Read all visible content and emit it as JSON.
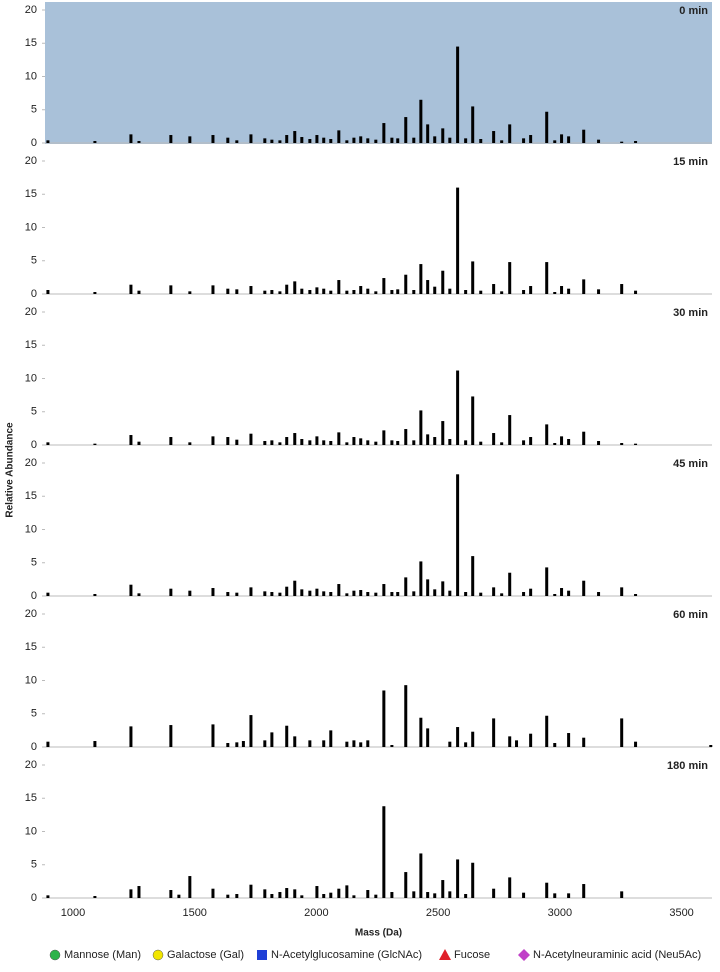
{
  "shared": {
    "ylabel": "Relative Abundance",
    "legend": [
      {
        "label": "Mannose (Man)",
        "color": "#2db34a",
        "shape": "circle"
      },
      {
        "label": "Galactose (Gal)",
        "color": "#f2e600",
        "shape": "circle"
      },
      {
        "label": "N-Acetylglucosamine (GlcNAc)",
        "color": "#1f3fd6",
        "shape": "square"
      },
      {
        "label": "Fucose",
        "color": "#e0202a",
        "shape": "triangle"
      },
      {
        "label": "N-Acetylneuraminic acid (Neu5Ac)",
        "color": "#c040c8",
        "shape": "diamond"
      }
    ]
  },
  "chart_data": [
    {
      "type": "bar",
      "title": "0 min",
      "background": "#a9c1d9",
      "color": "#000000",
      "xlim": [
        885,
        3625
      ],
      "ylim": [
        0,
        20
      ],
      "yticks": [
        0,
        5,
        10,
        15,
        20
      ],
      "x": [
        897,
        1090,
        1238,
        1271,
        1402,
        1480,
        1575,
        1636,
        1673,
        1731,
        1788,
        1817,
        1850,
        1878,
        1911,
        1940,
        1973,
        2002,
        2030,
        2059,
        2092,
        2125,
        2154,
        2182,
        2211,
        2244,
        2277,
        2310,
        2334,
        2367,
        2400,
        2429,
        2457,
        2486,
        2519,
        2548,
        2580,
        2613,
        2642,
        2675,
        2728,
        2761,
        2794,
        2851,
        2880,
        2946,
        2979,
        3007,
        3036,
        3098,
        3159,
        3254,
        3311
      ],
      "values": [
        0.4,
        0.3,
        1.3,
        0.3,
        1.2,
        1.0,
        1.2,
        0.8,
        0.4,
        1.3,
        0.7,
        0.5,
        0.4,
        1.2,
        1.8,
        0.9,
        0.6,
        1.2,
        0.8,
        0.6,
        1.9,
        0.4,
        0.8,
        1.0,
        0.7,
        0.5,
        3.0,
        0.8,
        0.7,
        3.9,
        0.8,
        6.5,
        2.8,
        1.0,
        2.2,
        0.8,
        14.5,
        0.7,
        5.5,
        0.6,
        1.8,
        0.4,
        2.8,
        0.7,
        1.2,
        4.7,
        0.4,
        1.3,
        1.0,
        2.0,
        0.5,
        0.2,
        0.3
      ]
    },
    {
      "type": "bar",
      "title": "15 min",
      "color": "#000000",
      "xlim": [
        885,
        3625
      ],
      "ylim": [
        0,
        20
      ],
      "yticks": [
        0,
        5,
        10,
        15,
        20
      ],
      "x": [
        897,
        1090,
        1238,
        1271,
        1402,
        1480,
        1575,
        1636,
        1673,
        1731,
        1788,
        1817,
        1850,
        1878,
        1911,
        1940,
        1973,
        2002,
        2030,
        2059,
        2092,
        2125,
        2154,
        2182,
        2211,
        2244,
        2277,
        2310,
        2334,
        2367,
        2400,
        2429,
        2457,
        2486,
        2519,
        2548,
        2580,
        2613,
        2642,
        2675,
        2728,
        2761,
        2794,
        2851,
        2880,
        2946,
        2979,
        3007,
        3036,
        3098,
        3159,
        3254,
        3311
      ],
      "values": [
        0.6,
        0.3,
        1.4,
        0.5,
        1.3,
        0.4,
        1.3,
        0.8,
        0.7,
        1.2,
        0.5,
        0.6,
        0.4,
        1.4,
        1.9,
        0.8,
        0.6,
        1.0,
        0.8,
        0.5,
        2.1,
        0.5,
        0.6,
        1.2,
        0.8,
        0.4,
        2.4,
        0.6,
        0.7,
        2.9,
        0.6,
        4.5,
        2.1,
        1.1,
        3.5,
        0.8,
        16.0,
        0.6,
        4.9,
        0.5,
        1.5,
        0.4,
        4.8,
        0.6,
        1.2,
        4.8,
        0.3,
        1.2,
        0.8,
        2.2,
        0.7,
        1.5,
        0.5
      ]
    },
    {
      "type": "bar",
      "title": "30 min",
      "color": "#000000",
      "xlim": [
        885,
        3625
      ],
      "ylim": [
        0,
        20
      ],
      "yticks": [
        0,
        5,
        10,
        15,
        20
      ],
      "x": [
        897,
        1090,
        1238,
        1271,
        1402,
        1480,
        1575,
        1636,
        1673,
        1731,
        1788,
        1817,
        1850,
        1878,
        1911,
        1940,
        1973,
        2002,
        2030,
        2059,
        2092,
        2125,
        2154,
        2182,
        2211,
        2244,
        2277,
        2310,
        2334,
        2367,
        2400,
        2429,
        2457,
        2486,
        2519,
        2548,
        2580,
        2613,
        2642,
        2675,
        2728,
        2761,
        2794,
        2851,
        2880,
        2946,
        2979,
        3007,
        3036,
        3098,
        3159,
        3254,
        3311
      ],
      "values": [
        0.4,
        0.2,
        1.5,
        0.5,
        1.2,
        0.4,
        1.3,
        1.2,
        0.8,
        1.7,
        0.6,
        0.7,
        0.4,
        1.2,
        1.8,
        0.9,
        0.7,
        1.3,
        0.7,
        0.6,
        1.9,
        0.4,
        1.2,
        1.0,
        0.7,
        0.5,
        2.2,
        0.7,
        0.6,
        2.4,
        0.7,
        5.2,
        1.6,
        1.2,
        3.6,
        0.9,
        11.2,
        0.7,
        7.3,
        0.5,
        1.8,
        0.4,
        4.5,
        0.7,
        1.2,
        3.1,
        0.3,
        1.3,
        0.9,
        2.0,
        0.6,
        0.3,
        0.2
      ]
    },
    {
      "type": "bar",
      "title": "45 min",
      "color": "#000000",
      "xlim": [
        885,
        3625
      ],
      "ylim": [
        0,
        20
      ],
      "yticks": [
        0,
        5,
        10,
        15,
        20
      ],
      "x": [
        897,
        1090,
        1238,
        1271,
        1402,
        1480,
        1575,
        1636,
        1673,
        1731,
        1788,
        1817,
        1850,
        1878,
        1911,
        1940,
        1973,
        2002,
        2030,
        2059,
        2092,
        2125,
        2154,
        2182,
        2211,
        2244,
        2277,
        2310,
        2334,
        2367,
        2400,
        2429,
        2457,
        2486,
        2519,
        2548,
        2580,
        2613,
        2642,
        2675,
        2728,
        2761,
        2794,
        2851,
        2880,
        2946,
        2979,
        3007,
        3036,
        3098,
        3159,
        3254,
        3311
      ],
      "values": [
        0.5,
        0.3,
        1.7,
        0.4,
        1.1,
        0.8,
        1.2,
        0.6,
        0.5,
        1.3,
        0.7,
        0.6,
        0.5,
        1.4,
        2.3,
        1.0,
        0.8,
        1.1,
        0.7,
        0.6,
        1.8,
        0.4,
        0.8,
        0.9,
        0.6,
        0.5,
        1.8,
        0.6,
        0.6,
        2.8,
        0.7,
        5.2,
        2.5,
        1.0,
        2.2,
        0.8,
        18.3,
        0.6,
        6.0,
        0.5,
        1.3,
        0.4,
        3.5,
        0.6,
        1.1,
        4.3,
        0.3,
        1.2,
        0.8,
        2.3,
        0.6,
        1.3,
        0.3
      ]
    },
    {
      "type": "bar",
      "title": "60 min",
      "color": "#000000",
      "xlim": [
        885,
        3625
      ],
      "ylim": [
        0,
        20
      ],
      "yticks": [
        0,
        5,
        10,
        15,
        20
      ],
      "x": [
        897,
        1090,
        1238,
        1402,
        1575,
        1636,
        1673,
        1700,
        1731,
        1788,
        1817,
        1878,
        1911,
        1973,
        2030,
        2059,
        2125,
        2154,
        2182,
        2211,
        2277,
        2310,
        2367,
        2429,
        2457,
        2548,
        2580,
        2613,
        2642,
        2728,
        2794,
        2822,
        2880,
        2946,
        2979,
        3036,
        3098,
        3254,
        3311,
        3620
      ],
      "values": [
        0.8,
        0.9,
        3.1,
        3.3,
        3.4,
        0.6,
        0.7,
        0.9,
        4.8,
        1.0,
        2.2,
        3.2,
        1.6,
        1.0,
        1.0,
        2.5,
        0.8,
        1.0,
        0.7,
        1.0,
        8.5,
        0.3,
        9.3,
        4.4,
        2.8,
        0.8,
        3.0,
        0.7,
        2.3,
        4.3,
        1.6,
        1.0,
        2.0,
        4.7,
        0.6,
        2.1,
        1.4,
        4.3,
        0.8,
        0.3
      ]
    },
    {
      "type": "bar",
      "title": "180 min",
      "xlabel": "Mass (Da)",
      "color": "#000000",
      "xlim": [
        885,
        3625
      ],
      "xticks": [
        1000,
        1500,
        2000,
        2500,
        3000,
        3500
      ],
      "ylim": [
        0,
        20
      ],
      "yticks": [
        0,
        5,
        10,
        15,
        20
      ],
      "x": [
        897,
        1090,
        1238,
        1271,
        1402,
        1435,
        1480,
        1575,
        1636,
        1673,
        1731,
        1788,
        1817,
        1850,
        1878,
        1911,
        1940,
        2002,
        2030,
        2059,
        2092,
        2125,
        2154,
        2211,
        2244,
        2277,
        2310,
        2367,
        2400,
        2429,
        2457,
        2486,
        2519,
        2548,
        2580,
        2613,
        2642,
        2728,
        2794,
        2851,
        2946,
        2979,
        3036,
        3098,
        3254
      ],
      "values": [
        0.4,
        0.3,
        1.3,
        1.8,
        1.2,
        0.5,
        3.3,
        1.4,
        0.5,
        0.6,
        2.0,
        1.3,
        0.6,
        0.9,
        1.5,
        1.3,
        0.4,
        1.8,
        0.6,
        0.8,
        1.4,
        1.9,
        0.4,
        1.2,
        0.5,
        13.8,
        0.9,
        3.9,
        1.0,
        6.7,
        0.9,
        0.7,
        2.7,
        1.0,
        5.8,
        0.6,
        5.3,
        1.4,
        3.1,
        0.8,
        2.3,
        0.7,
        0.7,
        2.1,
        1.0
      ]
    }
  ]
}
